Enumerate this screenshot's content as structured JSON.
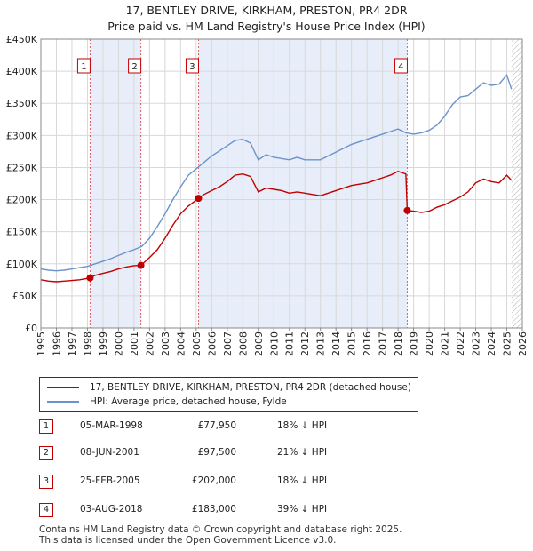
{
  "title_line1": "17, BENTLEY DRIVE, KIRKHAM, PRESTON, PR4 2DR",
  "title_line2": "Price paid vs. HM Land Registry's House Price Index (HPI)",
  "legend": {
    "property_label": "17, BENTLEY DRIVE, KIRKHAM, PRESTON, PR4 2DR (detached house)",
    "hpi_label": "HPI: Average price, detached house, Fylde",
    "property_color": "#c00000",
    "hpi_color": "#6b93c9"
  },
  "sales": [
    {
      "num": "1",
      "date": "05-MAR-1998",
      "price": "£77,950",
      "hpi": "18% ↓ HPI"
    },
    {
      "num": "2",
      "date": "08-JUN-2001",
      "price": "£97,500",
      "hpi": "21% ↓ HPI"
    },
    {
      "num": "3",
      "date": "25-FEB-2005",
      "price": "£202,000",
      "hpi": "18% ↓ HPI"
    },
    {
      "num": "4",
      "date": "03-AUG-2018",
      "price": "£183,000",
      "hpi": "39% ↓ HPI"
    }
  ],
  "footer_line1": "Contains HM Land Registry data © Crown copyright and database right 2025.",
  "footer_line2": "This data is licensed under the Open Government Licence v3.0.",
  "chart_data": {
    "type": "line",
    "title": "17, BENTLEY DRIVE, KIRKHAM, PRESTON, PR4 2DR",
    "subtitle": "Price paid vs. HM Land Registry's House Price Index (HPI)",
    "xlim": [
      1995,
      2026
    ],
    "ylim": [
      0,
      450000
    ],
    "y_ticks": [
      0,
      50000,
      100000,
      150000,
      200000,
      250000,
      300000,
      350000,
      400000,
      450000
    ],
    "y_tick_labels": [
      "£0",
      "£50K",
      "£100K",
      "£150K",
      "£200K",
      "£250K",
      "£300K",
      "£350K",
      "£400K",
      "£450K"
    ],
    "x_ticks": [
      1995,
      1996,
      1997,
      1998,
      1999,
      2000,
      2001,
      2002,
      2003,
      2004,
      2005,
      2006,
      2007,
      2008,
      2009,
      2010,
      2011,
      2012,
      2013,
      2014,
      2015,
      2016,
      2017,
      2018,
      2019,
      2020,
      2021,
      2022,
      2023,
      2024,
      2025,
      2026
    ],
    "x_tick_labels": [
      "1995",
      "1996",
      "1997",
      "1998",
      "1999",
      "2000",
      "2001",
      "2002",
      "2003",
      "2004",
      "2005",
      "2006",
      "2007",
      "2008",
      "2009",
      "2010",
      "2011",
      "2012",
      "2013",
      "2014",
      "2015",
      "2016",
      "2017",
      "2018",
      "2019",
      "2020",
      "2021",
      "2022",
      "2023",
      "2024",
      "2025",
      "2026"
    ],
    "grid": true,
    "shaded_periods": [
      [
        1998.17,
        2001.44
      ],
      [
        2005.15,
        2018.59
      ]
    ],
    "hatched_after": 2025.3,
    "sale_markers": [
      {
        "label": "1",
        "x": 1998.17,
        "y": 77950
      },
      {
        "label": "2",
        "x": 2001.44,
        "y": 97500
      },
      {
        "label": "3",
        "x": 2005.15,
        "y": 202000
      },
      {
        "label": "4",
        "x": 2018.59,
        "y": 183000
      }
    ],
    "series": [
      {
        "name": "17, BENTLEY DRIVE, KIRKHAM, PRESTON, PR4 2DR (detached house)",
        "color": "#c00000",
        "x": [
          1995.0,
          1995.5,
          1996.0,
          1996.5,
          1997.0,
          1997.5,
          1998.17,
          1998.5,
          1999.0,
          1999.5,
          2000.0,
          2000.5,
          2001.0,
          2001.44,
          2002.0,
          2002.5,
          2003.0,
          2003.5,
          2004.0,
          2004.5,
          2005.15,
          2005.5,
          2006.0,
          2006.5,
          2007.0,
          2007.5,
          2008.0,
          2008.5,
          2009.0,
          2009.5,
          2010.0,
          2010.5,
          2011.0,
          2011.5,
          2012.0,
          2012.5,
          2013.0,
          2013.5,
          2014.0,
          2014.5,
          2015.0,
          2015.5,
          2016.0,
          2016.5,
          2017.0,
          2017.5,
          2018.0,
          2018.5,
          2018.59,
          2019.0,
          2019.5,
          2020.0,
          2020.5,
          2021.0,
          2021.5,
          2022.0,
          2022.5,
          2023.0,
          2023.5,
          2024.0,
          2024.5,
          2025.0,
          2025.3
        ],
        "y": [
          75000,
          73000,
          72000,
          73000,
          74000,
          75000,
          77950,
          82000,
          85000,
          88000,
          92000,
          95000,
          97000,
          97500,
          110000,
          122000,
          140000,
          160000,
          178000,
          190000,
          202000,
          208000,
          214000,
          220000,
          228000,
          238000,
          240000,
          236000,
          212000,
          218000,
          216000,
          214000,
          210000,
          212000,
          210000,
          208000,
          206000,
          210000,
          214000,
          218000,
          222000,
          224000,
          226000,
          230000,
          234000,
          238000,
          244000,
          240000,
          183000,
          182000,
          180000,
          182000,
          188000,
          192000,
          198000,
          204000,
          212000,
          226000,
          232000,
          228000,
          226000,
          238000,
          230000
        ]
      },
      {
        "name": "HPI: Average price, detached house, Fylde",
        "color": "#6b93c9",
        "x": [
          1995.0,
          1995.5,
          1996.0,
          1996.5,
          1997.0,
          1997.5,
          1998.0,
          1998.5,
          1999.0,
          1999.5,
          2000.0,
          2000.5,
          2001.0,
          2001.5,
          2002.0,
          2002.5,
          2003.0,
          2003.5,
          2004.0,
          2004.5,
          2005.0,
          2005.5,
          2006.0,
          2006.5,
          2007.0,
          2007.5,
          2008.0,
          2008.5,
          2009.0,
          2009.5,
          2010.0,
          2010.5,
          2011.0,
          2011.5,
          2012.0,
          2012.5,
          2013.0,
          2013.5,
          2014.0,
          2014.5,
          2015.0,
          2015.5,
          2016.0,
          2016.5,
          2017.0,
          2017.5,
          2018.0,
          2018.5,
          2019.0,
          2019.5,
          2020.0,
          2020.5,
          2021.0,
          2021.5,
          2022.0,
          2022.5,
          2023.0,
          2023.5,
          2024.0,
          2024.5,
          2025.0,
          2025.3
        ],
        "y": [
          92000,
          90000,
          89000,
          90000,
          92000,
          94000,
          96000,
          100000,
          104000,
          108000,
          113000,
          118000,
          122000,
          127000,
          140000,
          158000,
          178000,
          200000,
          220000,
          238000,
          248000,
          258000,
          268000,
          276000,
          284000,
          292000,
          294000,
          288000,
          262000,
          270000,
          266000,
          264000,
          262000,
          266000,
          262000,
          262000,
          262000,
          268000,
          274000,
          280000,
          286000,
          290000,
          294000,
          298000,
          302000,
          306000,
          310000,
          304000,
          302000,
          304000,
          308000,
          316000,
          330000,
          348000,
          360000,
          362000,
          372000,
          382000,
          378000,
          380000,
          394000,
          372000
        ]
      }
    ]
  }
}
